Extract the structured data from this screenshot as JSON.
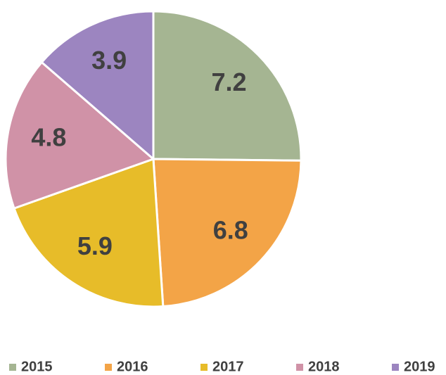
{
  "chart_data": {
    "type": "pie",
    "categories": [
      "2015",
      "2016",
      "2017",
      "2018",
      "2019"
    ],
    "values": [
      7.2,
      6.8,
      5.9,
      4.8,
      3.9
    ],
    "colors": [
      "#a5b592",
      "#f3a447",
      "#e7bc29",
      "#d092a7",
      "#9c85c0"
    ],
    "legend": "bottom"
  }
}
